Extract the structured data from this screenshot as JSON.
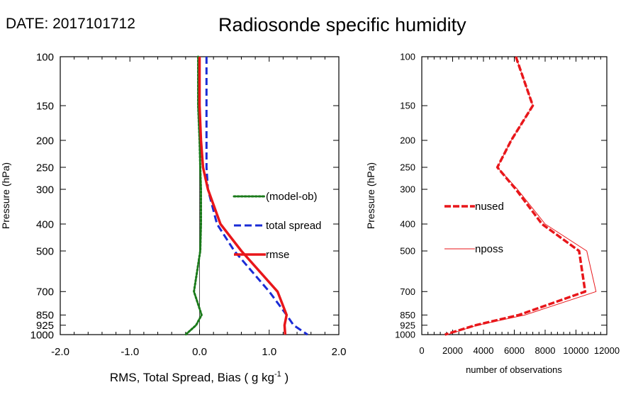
{
  "header": {
    "date_label": "DATE: 2017101712",
    "title": "Radiosonde specific humidity"
  },
  "chart_data": [
    {
      "type": "line",
      "name": "left-panel",
      "y_axis": {
        "label": "Pressure (hPa)",
        "scale": "log",
        "range": [
          1000,
          100
        ],
        "ticks": [
          100,
          150,
          200,
          250,
          300,
          400,
          500,
          700,
          850,
          925,
          1000
        ]
      },
      "x_axis": {
        "label_text": "RMS, Total Spread, Bias ( g kg",
        "label_sup": "-1",
        "label_end": " )",
        "range": [
          -2.0,
          2.0
        ],
        "ticks": [
          -2.0,
          -1.0,
          0.0,
          1.0,
          2.0
        ],
        "tick_labels": [
          "-2.0",
          "-1.0",
          "0.0",
          "1.0",
          "2.0"
        ],
        "minor_step": 0.2
      },
      "series": [
        {
          "name": "(model-ob)",
          "color": "#1a7a1a",
          "style": "dotted",
          "points": [
            [
              -0.02,
              100
            ],
            [
              -0.02,
              150
            ],
            [
              0.0,
              200
            ],
            [
              0.01,
              250
            ],
            [
              0.02,
              300
            ],
            [
              0.02,
              400
            ],
            [
              0.01,
              500
            ],
            [
              -0.08,
              700
            ],
            [
              0.03,
              850
            ],
            [
              -0.05,
              925
            ],
            [
              -0.2,
              1000
            ]
          ]
        },
        {
          "name": "total spread",
          "color": "#1a2bd6",
          "style": "dashed",
          "points": [
            [
              0.1,
              100
            ],
            [
              0.1,
              150
            ],
            [
              0.1,
              200
            ],
            [
              0.1,
              250
            ],
            [
              0.12,
              300
            ],
            [
              0.25,
              400
            ],
            [
              0.5,
              500
            ],
            [
              1.0,
              700
            ],
            [
              1.25,
              850
            ],
            [
              1.35,
              925
            ],
            [
              1.55,
              1000
            ]
          ]
        },
        {
          "name": "rmse",
          "color": "#e8161a",
          "style": "solid",
          "points": [
            [
              0.0,
              100
            ],
            [
              0.0,
              150
            ],
            [
              0.02,
              200
            ],
            [
              0.05,
              250
            ],
            [
              0.12,
              300
            ],
            [
              0.3,
              400
            ],
            [
              0.6,
              500
            ],
            [
              1.12,
              700
            ],
            [
              1.25,
              850
            ],
            [
              1.22,
              925
            ],
            [
              1.23,
              1000
            ]
          ]
        }
      ],
      "zero_line": 0.0
    },
    {
      "type": "line",
      "name": "right-panel",
      "y_axis": {
        "label": "Pressure (hPa)",
        "scale": "log",
        "range": [
          1000,
          100
        ],
        "ticks": [
          100,
          150,
          200,
          250,
          300,
          400,
          500,
          700,
          850,
          925,
          1000
        ]
      },
      "x_axis": {
        "label": "number of observations",
        "range": [
          0,
          12000
        ],
        "ticks": [
          0,
          2000,
          4000,
          6000,
          8000,
          10000,
          12000
        ],
        "tick_labels": [
          "0",
          "2000",
          "4000",
          "6000",
          "8000",
          "10000",
          "12000"
        ],
        "minor_step": 400
      },
      "series": [
        {
          "name": "nused",
          "color": "#e8161a",
          "style": "dashed-thick",
          "points": [
            [
              6100,
              100
            ],
            [
              7200,
              150
            ],
            [
              5800,
              200
            ],
            [
              4900,
              250
            ],
            [
              6100,
              300
            ],
            [
              7800,
              400
            ],
            [
              10200,
              500
            ],
            [
              10600,
              700
            ],
            [
              6300,
              850
            ],
            [
              3500,
              925
            ],
            [
              1500,
              1000
            ]
          ]
        },
        {
          "name": "nposs",
          "color": "#e8161a",
          "style": "thin",
          "points": [
            [
              6100,
              100
            ],
            [
              7200,
              150
            ],
            [
              5800,
              200
            ],
            [
              4900,
              250
            ],
            [
              6200,
              300
            ],
            [
              8000,
              400
            ],
            [
              10700,
              500
            ],
            [
              11300,
              700
            ],
            [
              6700,
              850
            ],
            [
              3600,
              925
            ],
            [
              1650,
              1000
            ]
          ]
        }
      ]
    }
  ]
}
